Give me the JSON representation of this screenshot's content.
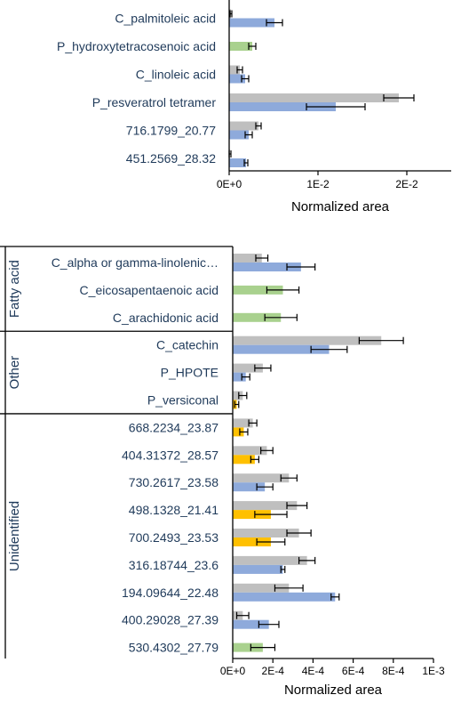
{
  "colors": {
    "gray": "#bfbfbf",
    "blue": "#8eaadb",
    "green": "#a9d18e",
    "yellow": "#ffc000",
    "error": "#000000"
  },
  "chart_data": [
    {
      "type": "bar",
      "orientation": "horizontal",
      "xlabel": "Normalized area",
      "xlim": [
        0,
        0.025
      ],
      "xticks": [
        0,
        0.01,
        0.02
      ],
      "xtick_labels": [
        "0E+0",
        "1E-2",
        "2E-2"
      ],
      "rows": [
        {
          "label": "C_palmitoleic acid",
          "bars": [
            {
              "color": "gray",
              "value": 0.0002,
              "err": 0.0001
            },
            {
              "color": "blue",
              "value": 0.0051,
              "err": 0.0009
            }
          ]
        },
        {
          "label": "P_hydroxytetracosenoic acid",
          "bars": [
            {
              "color": "green",
              "value": 0.0026,
              "err": 0.0004
            }
          ]
        },
        {
          "label": "C_linoleic acid",
          "bars": [
            {
              "color": "gray",
              "value": 0.0012,
              "err": 0.0003
            },
            {
              "color": "blue",
              "value": 0.0018,
              "err": 0.0004
            }
          ]
        },
        {
          "label": "P_resveratrol tetramer",
          "bars": [
            {
              "color": "gray",
              "value": 0.0191,
              "err": 0.0017
            },
            {
              "color": "blue",
              "value": 0.012,
              "err": 0.0033
            }
          ]
        },
        {
          "label": "716.1799_20.77",
          "bars": [
            {
              "color": "gray",
              "value": 0.0033,
              "err": 0.0003
            },
            {
              "color": "blue",
              "value": 0.0022,
              "err": 0.0004
            }
          ]
        },
        {
          "label": "451.2569_28.32",
          "bars": [
            {
              "color": "gray",
              "value": 0.0001,
              "err": 0.0001
            },
            {
              "color": "blue",
              "value": 0.0019,
              "err": 0.0002
            }
          ]
        }
      ]
    },
    {
      "type": "bar",
      "orientation": "horizontal",
      "xlabel": "Normalized area",
      "xlim": [
        0,
        0.001
      ],
      "xticks": [
        0,
        0.0002,
        0.0004,
        0.0006,
        0.0008,
        0.001
      ],
      "xtick_labels": [
        "0E+0",
        "2E-4",
        "4E-4",
        "6E-4",
        "8E-4",
        "1E-3"
      ],
      "groups": [
        {
          "name": "Fatty acid",
          "rows": 3
        },
        {
          "name": "Other",
          "rows": 3
        },
        {
          "name": "Unidentified",
          "rows": 9
        }
      ],
      "rows": [
        {
          "label": "C_alpha or gamma-linolenic…",
          "bars": [
            {
              "color": "gray",
              "value": 0.000145,
              "err": 3e-05
            },
            {
              "color": "blue",
              "value": 0.00034,
              "err": 7e-05
            }
          ]
        },
        {
          "label": "C_eicosapentaenoic acid",
          "bars": [
            {
              "color": "green",
              "value": 0.00025,
              "err": 8e-05
            }
          ]
        },
        {
          "label": "C_arachidonic acid",
          "bars": [
            {
              "color": "green",
              "value": 0.00024,
              "err": 8e-05
            }
          ]
        },
        {
          "label": "C_catechin",
          "bars": [
            {
              "color": "gray",
              "value": 0.00074,
              "err": 0.00011
            },
            {
              "color": "blue",
              "value": 0.00048,
              "err": 9e-05
            }
          ]
        },
        {
          "label": "P_HPOTE",
          "bars": [
            {
              "color": "gray",
              "value": 0.00015,
              "err": 4e-05
            },
            {
              "color": "blue",
              "value": 6.5e-05,
              "err": 2e-05
            }
          ]
        },
        {
          "label": "P_versiconal",
          "bars": [
            {
              "color": "gray",
              "value": 5e-05,
              "err": 2e-05
            },
            {
              "color": "yellow",
              "value": 2e-05,
              "err": 1e-05
            }
          ]
        },
        {
          "label": "668.2234_23.87",
          "bars": [
            {
              "color": "gray",
              "value": 0.0001,
              "err": 2e-05
            },
            {
              "color": "yellow",
              "value": 5.5e-05,
              "err": 2e-05
            }
          ]
        },
        {
          "label": "404.31372_28.57",
          "bars": [
            {
              "color": "gray",
              "value": 0.00017,
              "err": 3e-05
            },
            {
              "color": "yellow",
              "value": 0.00011,
              "err": 2e-05
            }
          ]
        },
        {
          "label": "730.2617_23.58",
          "bars": [
            {
              "color": "gray",
              "value": 0.00028,
              "err": 4e-05
            },
            {
              "color": "blue",
              "value": 0.00016,
              "err": 4e-05
            }
          ]
        },
        {
          "label": "498.1328_21.41",
          "bars": [
            {
              "color": "gray",
              "value": 0.00032,
              "err": 5e-05
            },
            {
              "color": "yellow",
              "value": 0.00019,
              "err": 8e-05
            }
          ]
        },
        {
          "label": "700.2493_23.53",
          "bars": [
            {
              "color": "gray",
              "value": 0.00033,
              "err": 6e-05
            },
            {
              "color": "yellow",
              "value": 0.00019,
              "err": 7e-05
            }
          ]
        },
        {
          "label": "316.18744_23.6",
          "bars": [
            {
              "color": "gray",
              "value": 0.00037,
              "err": 4e-05
            },
            {
              "color": "blue",
              "value": 0.00025,
              "err": 1e-05
            }
          ]
        },
        {
          "label": "194.09644_22.48",
          "bars": [
            {
              "color": "gray",
              "value": 0.00028,
              "err": 7e-05
            },
            {
              "color": "blue",
              "value": 0.00051,
              "err": 2e-05
            }
          ]
        },
        {
          "label": "400.29028_27.39",
          "bars": [
            {
              "color": "gray",
              "value": 5e-05,
              "err": 3e-05
            },
            {
              "color": "blue",
              "value": 0.00018,
              "err": 5e-05
            }
          ]
        },
        {
          "label": "530.4302_27.79",
          "bars": [
            {
              "color": "green",
              "value": 0.00015,
              "err": 6e-05
            }
          ]
        }
      ]
    }
  ]
}
